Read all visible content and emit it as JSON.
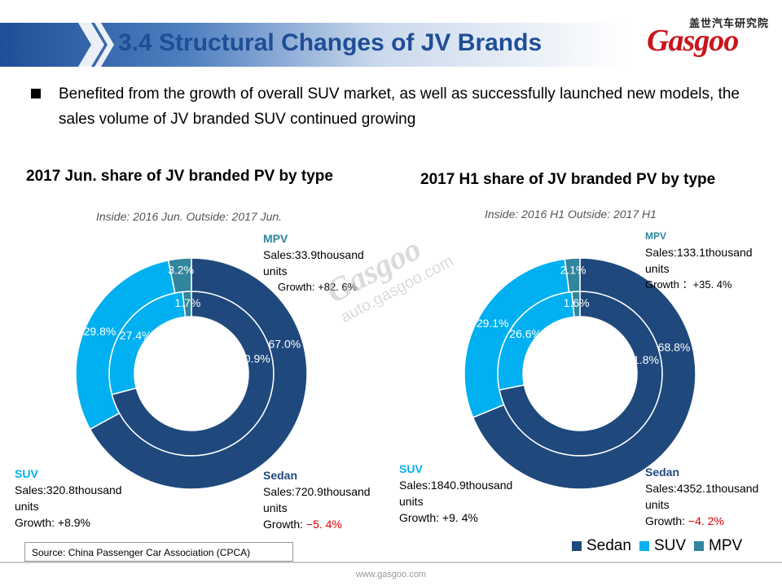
{
  "header": {
    "title": "3.4 Structural Changes of JV Brands",
    "logo_cn": "盖世汽车研究院",
    "logo_text": "Gasgoo"
  },
  "bullet": {
    "text": "Benefited from the growth of overall SUV market, as well as successfully launched new models, the sales volume of JV branded SUV continued growing"
  },
  "watermark": {
    "logo": "Gasgoo",
    "url": "auto.gasgoo.com"
  },
  "colors": {
    "Sedan": "#1f497d",
    "SUV": "#00b0f0",
    "MPV": "#31859c",
    "title": "#1f4e96",
    "negative": "#e00000"
  },
  "chart_data": [
    {
      "type": "donut",
      "title": "2017 Jun. share of JV branded PV by type",
      "subtitle": "Inside: 2016 Jun.  Outside: 2017 Jun.",
      "categories": [
        "Sedan",
        "SUV",
        "MPV"
      ],
      "series": [
        {
          "name": "Inside: 2016 Jun.",
          "values": [
            70.9,
            27.4,
            1.7
          ],
          "labels": [
            "70.9%",
            "27.4%",
            "1.7%"
          ]
        },
        {
          "name": "Outside: 2017 Jun.",
          "values": [
            67.0,
            29.8,
            3.2
          ],
          "labels": [
            "67.0%",
            "29.8%",
            "3.2%"
          ]
        }
      ],
      "callouts": {
        "mpv": {
          "name": "MPV",
          "sales": "Sales:33.9thousand",
          "units": "units",
          "growth_label": "Growth: ",
          "growth": "+82. 6%"
        },
        "suv": {
          "name": "SUV",
          "sales": "Sales:320.8thousand",
          "units": "units",
          "growth_label": "Growth: ",
          "growth": "+8.9%"
        },
        "sedan": {
          "name": "Sedan",
          "sales": "Sales:720.9thousand",
          "units": "units",
          "growth_label": "Growth: ",
          "growth": "−5. 4%"
        }
      }
    },
    {
      "type": "donut",
      "title": "2017 H1 share of JV branded PV by type",
      "subtitle": "Inside: 2016 H1  Outside: 2017 H1",
      "categories": [
        "Sedan",
        "SUV",
        "MPV"
      ],
      "series": [
        {
          "name": "Inside: 2016 H1",
          "values": [
            71.8,
            26.6,
            1.6
          ],
          "labels": [
            "71.8%",
            "26.6%",
            "1.6%"
          ]
        },
        {
          "name": "Outside: 2017 H1",
          "values": [
            68.8,
            29.1,
            2.1
          ],
          "labels": [
            "68.8%",
            "29.1%",
            "2.1%"
          ]
        }
      ],
      "callouts": {
        "mpv": {
          "name": "MPV",
          "sales": "Sales:133.1thousand",
          "units": "units",
          "growth_label": " Growth ：",
          "growth": "+35. 4%"
        },
        "suv": {
          "name": "SUV",
          "sales": "Sales:1840.9thousand",
          "units": "units",
          "growth_label": "Growth: ",
          "growth": "+9. 4%"
        },
        "sedan": {
          "name": "Sedan",
          "sales": "Sales:4352.1thousand",
          "units": "units",
          "growth_label": "Growth: ",
          "growth": "−4. 2%"
        }
      }
    }
  ],
  "legend": [
    "Sedan",
    "SUV",
    "MPV"
  ],
  "source": "Source: China Passenger Car Association (CPCA)",
  "footer": {
    "url": "www.gasgoo.com"
  }
}
